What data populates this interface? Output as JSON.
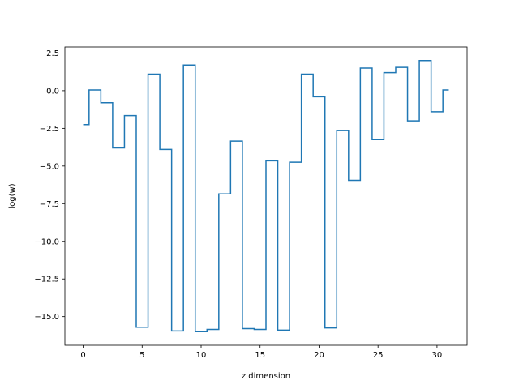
{
  "chart_data": {
    "type": "line",
    "drawstyle": "steps-mid",
    "xlabel": "z dimension",
    "ylabel": "log(w)",
    "xlim": [
      -1.55,
      32.55
    ],
    "ylim": [
      -16.9,
      2.9
    ],
    "xticks": [
      0,
      5,
      10,
      15,
      20,
      25,
      30
    ],
    "yticks": [
      2.5,
      0.0,
      -2.5,
      -5.0,
      -7.5,
      -10.0,
      -12.5,
      -15.0
    ],
    "xtick_labels": [
      "0",
      "5",
      "10",
      "15",
      "20",
      "25",
      "30"
    ],
    "ytick_labels": [
      "2.5",
      "0.0",
      "−2.5",
      "−5.0",
      "−7.5",
      "−10.0",
      "−12.5",
      "−15.0"
    ],
    "grid": false,
    "legend": "none",
    "series": [
      {
        "color": "#1f77b4",
        "x": [
          0,
          1,
          2,
          3,
          4,
          5,
          6,
          7,
          8,
          9,
          10,
          11,
          12,
          13,
          14,
          15,
          16,
          17,
          18,
          19,
          20,
          21,
          22,
          23,
          24,
          25,
          26,
          27,
          28,
          29,
          30,
          31
        ],
        "y": [
          -2.25,
          0.05,
          -0.8,
          -3.8,
          -1.65,
          -15.7,
          1.1,
          -3.9,
          -15.95,
          1.7,
          -16.0,
          -15.85,
          -6.85,
          -3.35,
          -15.8,
          -15.85,
          -4.65,
          -15.9,
          -4.75,
          1.1,
          -0.4,
          -15.75,
          -2.65,
          -5.95,
          1.5,
          -3.25,
          1.2,
          1.55,
          -2.0,
          2.0,
          -1.4,
          0.05
        ]
      }
    ]
  }
}
